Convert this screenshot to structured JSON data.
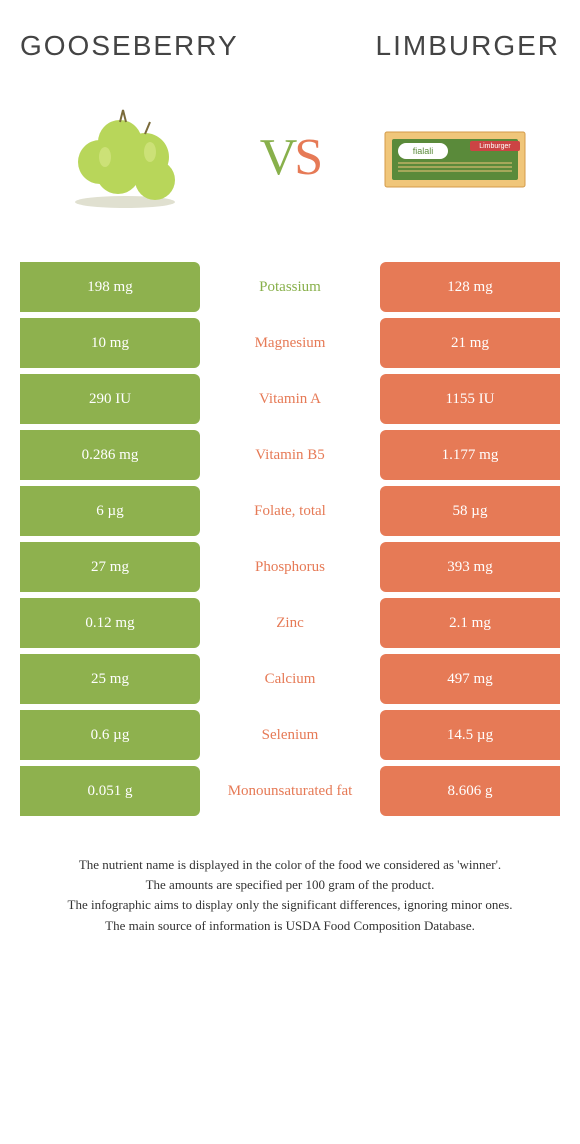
{
  "titles": {
    "left": "GOOSEBERRY",
    "right": "LIMBURGER"
  },
  "vs": {
    "v": "V",
    "s": "S"
  },
  "colors": {
    "left": "#8eb14e",
    "right": "#e67a56",
    "left_text": "#88b04b",
    "right_text": "#e67a56"
  },
  "rows": [
    {
      "left": "198 mg",
      "mid": "Potassium",
      "right": "128 mg",
      "winner": "left"
    },
    {
      "left": "10 mg",
      "mid": "Magnesium",
      "right": "21 mg",
      "winner": "right"
    },
    {
      "left": "290 IU",
      "mid": "Vitamin A",
      "right": "1155 IU",
      "winner": "right"
    },
    {
      "left": "0.286 mg",
      "mid": "Vitamin B5",
      "right": "1.177 mg",
      "winner": "right"
    },
    {
      "left": "6 µg",
      "mid": "Folate, total",
      "right": "58 µg",
      "winner": "right"
    },
    {
      "left": "27 mg",
      "mid": "Phosphorus",
      "right": "393 mg",
      "winner": "right"
    },
    {
      "left": "0.12 mg",
      "mid": "Zinc",
      "right": "2.1 mg",
      "winner": "right"
    },
    {
      "left": "25 mg",
      "mid": "Calcium",
      "right": "497 mg",
      "winner": "right"
    },
    {
      "left": "0.6 µg",
      "mid": "Selenium",
      "right": "14.5 µg",
      "winner": "right"
    },
    {
      "left": "0.051 g",
      "mid": "Monounsaturated fat",
      "right": "8.606 g",
      "winner": "right"
    }
  ],
  "footer": [
    "The nutrient name is displayed in the color of the food we considered as 'winner'.",
    "The amounts are specified per 100 gram of the product.",
    "The infographic aims to display only the significant differences, ignoring minor ones.",
    "The main source of information is USDA Food Composition Database."
  ]
}
